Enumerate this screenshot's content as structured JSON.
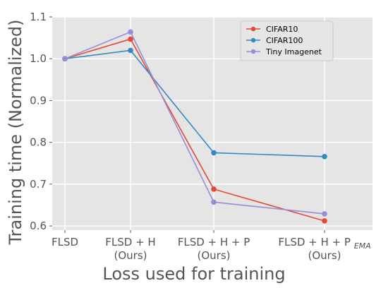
{
  "chart_data": {
    "type": "line",
    "xlabel": "Loss used for training",
    "ylabel": "Training time (Normalized)",
    "categories": [
      {
        "line1": "FLSD",
        "line2": ""
      },
      {
        "line1": "FLSD + H",
        "line2": "(Ours)"
      },
      {
        "line1": "FLSD + H + P",
        "line2": "(Ours)"
      },
      {
        "line1": "FLSD + H + P",
        "sub": "EMA",
        "line2": "(Ours)"
      }
    ],
    "ylim": [
      0.59,
      1.1
    ],
    "yticks": [
      "0.6",
      "0.7",
      "0.8",
      "0.9",
      "1.0",
      "1.1"
    ],
    "grid": true,
    "legend_position": "top-right",
    "series": [
      {
        "name": "CIFAR10",
        "color": "#E24A33",
        "values": [
          1.0,
          1.047,
          0.688,
          0.612
        ]
      },
      {
        "name": "CIFAR100",
        "color": "#348ABD",
        "values": [
          1.0,
          1.02,
          0.775,
          0.766
        ]
      },
      {
        "name": "Tiny Imagenet",
        "color": "#988ED5",
        "values": [
          1.0,
          1.064,
          0.657,
          0.629
        ]
      }
    ]
  }
}
